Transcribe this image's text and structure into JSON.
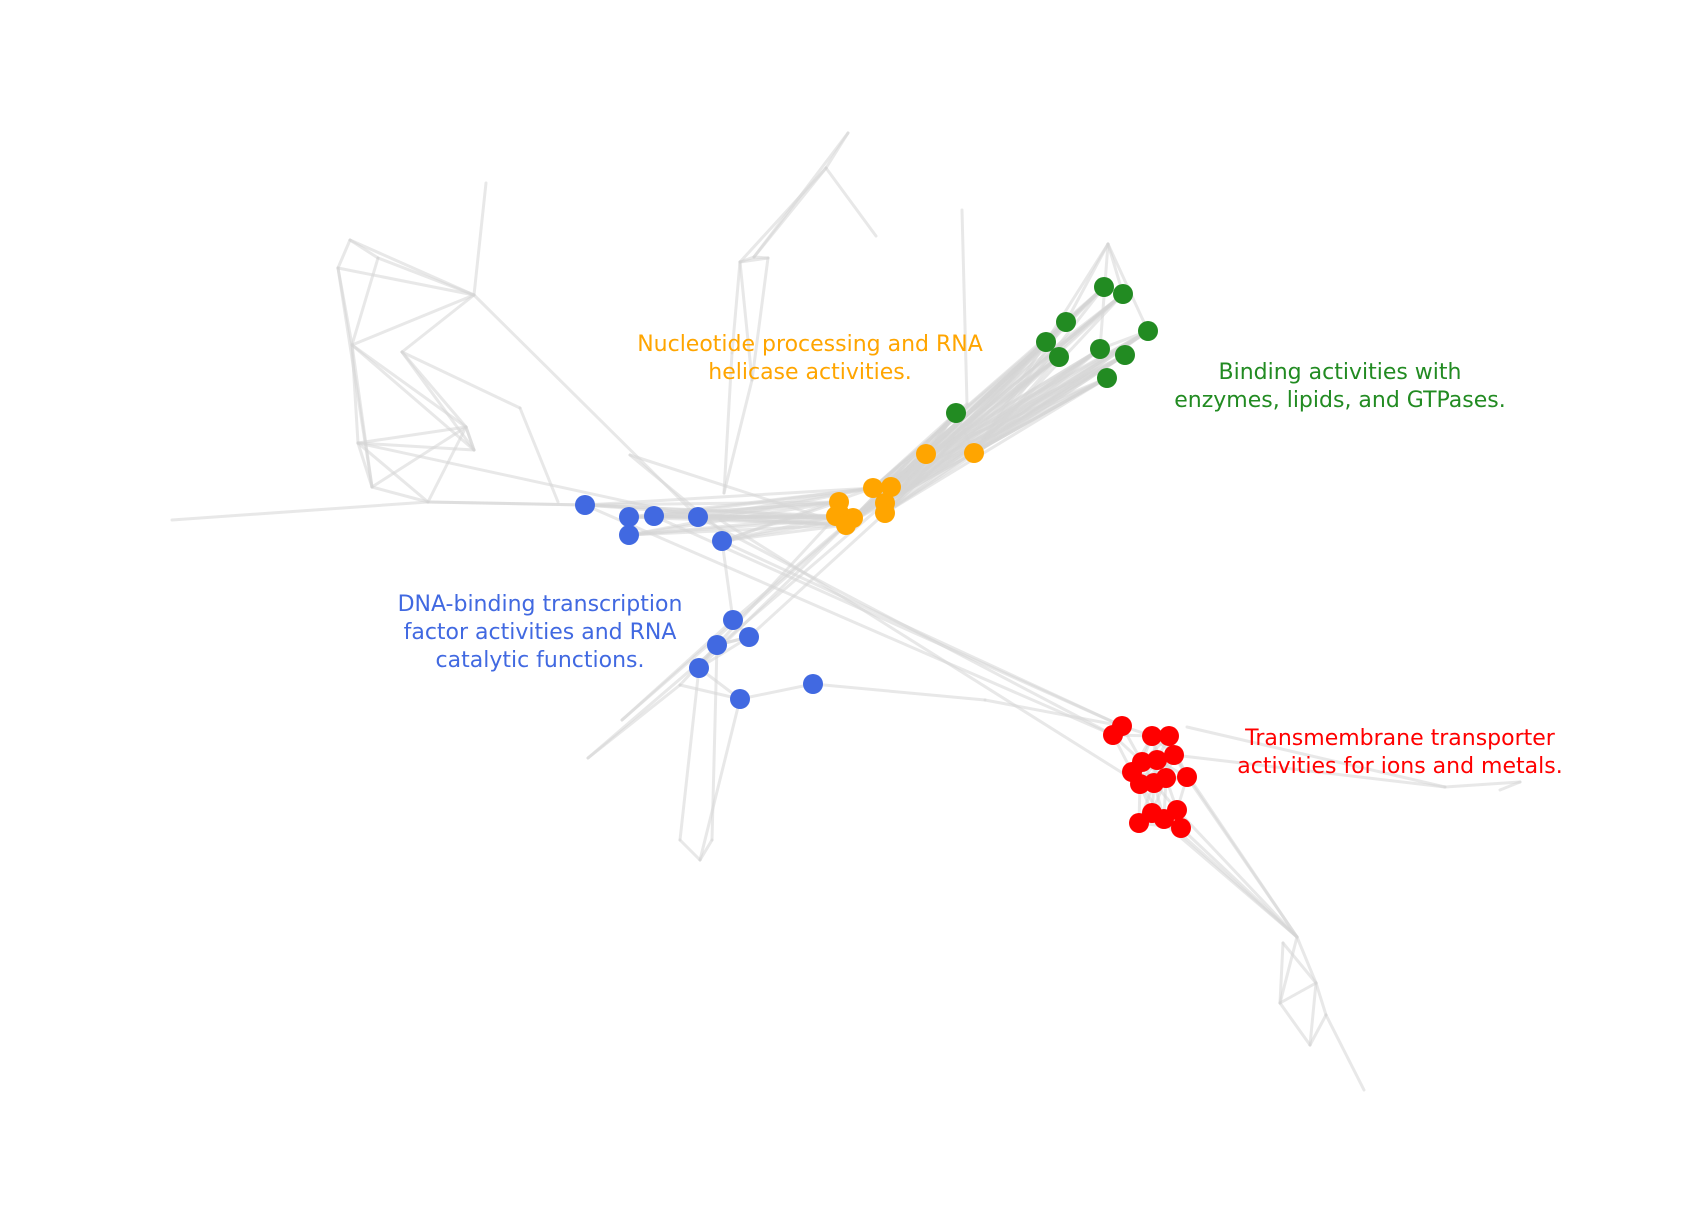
{
  "colors": {
    "edge": "#d6d6d6",
    "background": "#ffffff"
  },
  "clusters": [
    {
      "id": "orange",
      "color": "#FFA500",
      "label": "Nucleotide processing and RNA\nhelicase activities."
    },
    {
      "id": "green",
      "color": "#228B22",
      "label": "Binding activities with\nenzymes, lipids, and GTPases."
    },
    {
      "id": "blue",
      "color": "#4169E1",
      "label": "DNA-binding transcription\nfactor activities and RNA\ncatalytic functions."
    },
    {
      "id": "red",
      "color": "#FF0000",
      "label": "Transmembrane transporter\nactivities for ions and metals."
    }
  ]
}
